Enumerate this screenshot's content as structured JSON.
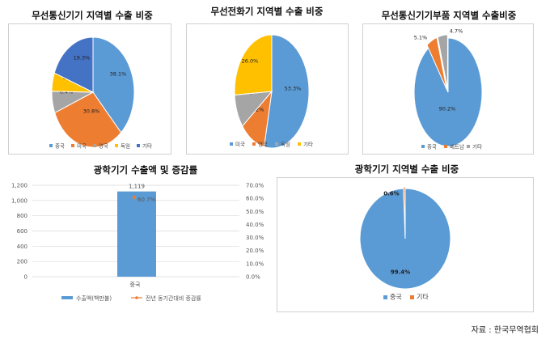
{
  "source": "자료 : 한국무역협회",
  "colors": {
    "china": "#5b9bd5",
    "usa": "#ed7d31",
    "uk": "#a5a5a5",
    "germany": "#ffc000",
    "other": "#4472c4",
    "panel_border": "#d0d0d0"
  },
  "chart_data": [
    {
      "type": "pie",
      "title": "무선통신기기 지역별 수출 비중",
      "labels": [
        "중국",
        "미국",
        "영국",
        "독일",
        "기타"
      ],
      "values": [
        38.1,
        30.8,
        6.4,
        5.4,
        19.3
      ],
      "value_labels": [
        "38.1%",
        "30.8%",
        "6.4%",
        "5.4%",
        "19.3%"
      ],
      "colors": [
        "#5b9bd5",
        "#ed7d31",
        "#a5a5a5",
        "#ffc000",
        "#4472c4"
      ],
      "legend": "bottom"
    },
    {
      "type": "pie",
      "title": "무선전화기 지역별 수출 비중",
      "labels": [
        "미국",
        "영국",
        "독일",
        "기타"
      ],
      "values": [
        53.3,
        11.2,
        9.5,
        26.0
      ],
      "value_labels": [
        "53.3%",
        "11.2%",
        "9.5%",
        "26.0%"
      ],
      "colors": [
        "#5b9bd5",
        "#ed7d31",
        "#a5a5a5",
        "#ffc000"
      ],
      "legend": "bottom"
    },
    {
      "type": "pie",
      "title": "무선통신기기부품 지역별 수출비중",
      "labels": [
        "중국",
        "베트남",
        "기타"
      ],
      "values": [
        90.2,
        5.1,
        4.7
      ],
      "value_labels": [
        "90.2%",
        "5.1%",
        "4.7%"
      ],
      "colors": [
        "#5b9bd5",
        "#ed7d31",
        "#a5a5a5"
      ],
      "legend": "bottom"
    },
    {
      "type": "bar",
      "title": "광학기기 수출액 및 증감률",
      "categories": [
        "중국"
      ],
      "series": [
        {
          "name": "수출액(백만불)",
          "values": [
            1119
          ],
          "value_labels": [
            "1,119"
          ],
          "axis": "left",
          "color": "#5b9bd5"
        },
        {
          "name": "전년 동기간대비 증감률",
          "values": [
            60.7
          ],
          "value_labels": [
            "60.7%"
          ],
          "axis": "right",
          "color": "#ed7d31"
        }
      ],
      "ylim": [
        0,
        1200
      ],
      "yticks": [
        "0",
        "200",
        "400",
        "600",
        "800",
        "1,000",
        "1,200"
      ],
      "y2lim": [
        0,
        70
      ],
      "y2ticks": [
        "0.0%",
        "10.0%",
        "20.0%",
        "30.0%",
        "40.0%",
        "50.0%",
        "60.0%",
        "70.0%"
      ],
      "grid": true,
      "legend": "bottom"
    },
    {
      "type": "pie",
      "title": "광학기기 지역별 수출 비중",
      "labels": [
        "중국",
        "기타"
      ],
      "values": [
        99.4,
        0.6
      ],
      "value_labels": [
        "99.4%",
        "0.6%"
      ],
      "colors": [
        "#5b9bd5",
        "#ed7d31"
      ],
      "legend": "bottom"
    }
  ]
}
